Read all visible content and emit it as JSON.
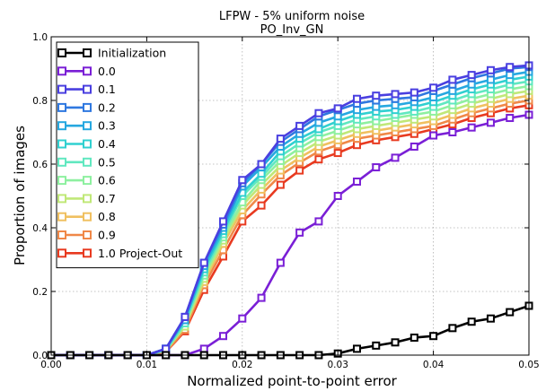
{
  "chart_data": {
    "type": "line",
    "title": "LFPW - 5% uniform noise",
    "subtitle": "PO_Inv_GN",
    "xlabel": "Normalized point-to-point error",
    "ylabel": "Proportion of images",
    "xlim": [
      0,
      0.05
    ],
    "ylim": [
      0,
      1.0
    ],
    "xticks": [
      "0.00",
      "0.01",
      "0.02",
      "0.03",
      "0.04",
      "0.05"
    ],
    "yticks": [
      "0.0",
      "0.2",
      "0.4",
      "0.6",
      "0.8",
      "1.0"
    ],
    "grid": true,
    "legend_position": "top-left",
    "x": [
      0,
      0.002,
      0.004,
      0.006,
      0.008,
      0.01,
      0.012,
      0.014,
      0.016,
      0.018,
      0.02,
      0.022,
      0.024,
      0.026,
      0.028,
      0.03,
      0.032,
      0.034,
      0.036,
      0.038,
      0.04,
      0.042,
      0.044,
      0.046,
      0.048,
      0.05
    ],
    "series": [
      {
        "name": "Initialization",
        "color": "#000000",
        "values": [
          0,
          0,
          0,
          0,
          0,
          0,
          0,
          0,
          0,
          0,
          0,
          0,
          0,
          0,
          0,
          0.005,
          0.02,
          0.03,
          0.04,
          0.055,
          0.06,
          0.085,
          0.105,
          0.115,
          0.135,
          0.155
        ]
      },
      {
        "name": "0.0",
        "color": "#7a1fd6",
        "values": [
          0,
          0,
          0,
          0,
          0,
          0,
          0,
          0,
          0.02,
          0.06,
          0.115,
          0.18,
          0.29,
          0.385,
          0.42,
          0.5,
          0.545,
          0.59,
          0.62,
          0.655,
          0.69,
          0.7,
          0.715,
          0.73,
          0.745,
          0.755
        ]
      },
      {
        "name": "0.1",
        "color": "#4a3fe0",
        "values": [
          0,
          0,
          0,
          0,
          0,
          0,
          0.02,
          0.12,
          0.29,
          0.42,
          0.55,
          0.6,
          0.68,
          0.72,
          0.76,
          0.775,
          0.805,
          0.815,
          0.82,
          0.825,
          0.84,
          0.865,
          0.88,
          0.895,
          0.905,
          0.91
        ]
      },
      {
        "name": "0.2",
        "color": "#2f78e0",
        "values": [
          0,
          0,
          0,
          0,
          0,
          0,
          0.02,
          0.12,
          0.29,
          0.41,
          0.54,
          0.6,
          0.67,
          0.71,
          0.75,
          0.77,
          0.79,
          0.8,
          0.805,
          0.81,
          0.83,
          0.85,
          0.87,
          0.885,
          0.9,
          0.905
        ]
      },
      {
        "name": "0.3",
        "color": "#26a8e0",
        "values": [
          0,
          0,
          0,
          0,
          0,
          0,
          0.02,
          0.11,
          0.28,
          0.4,
          0.53,
          0.59,
          0.655,
          0.695,
          0.73,
          0.75,
          0.77,
          0.78,
          0.785,
          0.795,
          0.81,
          0.83,
          0.85,
          0.865,
          0.88,
          0.89
        ]
      },
      {
        "name": "0.4",
        "color": "#30d0d0",
        "values": [
          0,
          0,
          0,
          0,
          0,
          0,
          0.02,
          0.11,
          0.27,
          0.39,
          0.51,
          0.57,
          0.64,
          0.68,
          0.71,
          0.735,
          0.755,
          0.765,
          0.77,
          0.78,
          0.795,
          0.815,
          0.835,
          0.85,
          0.865,
          0.875
        ]
      },
      {
        "name": "0.5",
        "color": "#60e8c0",
        "values": [
          0,
          0,
          0,
          0,
          0,
          0,
          0.015,
          0.1,
          0.26,
          0.38,
          0.5,
          0.56,
          0.625,
          0.665,
          0.7,
          0.72,
          0.74,
          0.75,
          0.755,
          0.765,
          0.78,
          0.8,
          0.82,
          0.835,
          0.85,
          0.86
        ]
      },
      {
        "name": "0.6",
        "color": "#8ef0a0",
        "values": [
          0,
          0,
          0,
          0,
          0,
          0,
          0.015,
          0.1,
          0.25,
          0.37,
          0.48,
          0.55,
          0.61,
          0.65,
          0.685,
          0.705,
          0.725,
          0.735,
          0.745,
          0.755,
          0.765,
          0.785,
          0.805,
          0.82,
          0.835,
          0.845
        ]
      },
      {
        "name": "0.7",
        "color": "#c0e878",
        "values": [
          0,
          0,
          0,
          0,
          0,
          0,
          0.015,
          0.09,
          0.24,
          0.36,
          0.47,
          0.535,
          0.595,
          0.635,
          0.67,
          0.69,
          0.71,
          0.72,
          0.73,
          0.74,
          0.75,
          0.77,
          0.79,
          0.805,
          0.82,
          0.83
        ]
      },
      {
        "name": "0.8",
        "color": "#f0c060",
        "values": [
          0,
          0,
          0,
          0,
          0,
          0,
          0.015,
          0.09,
          0.23,
          0.35,
          0.455,
          0.52,
          0.58,
          0.62,
          0.655,
          0.675,
          0.695,
          0.705,
          0.715,
          0.725,
          0.735,
          0.755,
          0.775,
          0.79,
          0.805,
          0.815
        ]
      },
      {
        "name": "0.9",
        "color": "#f08848",
        "values": [
          0,
          0,
          0,
          0,
          0,
          0,
          0.01,
          0.08,
          0.22,
          0.33,
          0.44,
          0.505,
          0.565,
          0.605,
          0.64,
          0.66,
          0.68,
          0.69,
          0.7,
          0.71,
          0.72,
          0.74,
          0.76,
          0.775,
          0.79,
          0.8
        ]
      },
      {
        "name": "1.0 Project-Out",
        "color": "#e83a20",
        "values": [
          0,
          0,
          0,
          0,
          0,
          0,
          0.01,
          0.075,
          0.205,
          0.31,
          0.42,
          0.47,
          0.535,
          0.58,
          0.615,
          0.635,
          0.66,
          0.675,
          0.685,
          0.695,
          0.71,
          0.725,
          0.745,
          0.76,
          0.775,
          0.785
        ]
      }
    ]
  }
}
